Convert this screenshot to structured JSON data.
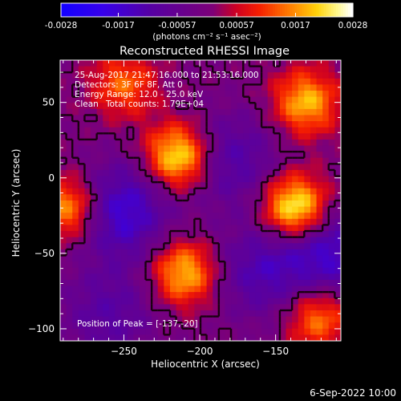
{
  "chart_data": {
    "type": "heatmap",
    "title": "Reconstructed RHESSI Image",
    "xlabel": "Heliocentric X (arcsec)",
    "ylabel": "Heliocentric Y (arcsec)",
    "xlim": [
      -292,
      -107
    ],
    "ylim": [
      -108,
      78
    ],
    "x_ticks": [
      -250,
      -200,
      -150
    ],
    "y_ticks": [
      -100,
      -50,
      0,
      50
    ],
    "colorbar": {
      "range": [
        -0.0028,
        0.0028
      ],
      "ticks": [
        "-0.0028",
        "-0.0017",
        "-0.00057",
        "0.00057",
        "0.0017",
        "0.0028"
      ],
      "units": "(photons cm⁻² s⁻¹ asec⁻²)"
    },
    "annotations": {
      "time_range": "25-Aug-2017 21:47:16.000 to 21:53:16.000",
      "detectors": "Detectors: 3F 6F 8F, Att 0",
      "energy": "Energy Range: 12.0 - 25.0 keV",
      "method": "Clean",
      "counts": "Total counts: 1.79E+04",
      "peak": "Position of Peak = [-137,-20]"
    },
    "peaks": [
      {
        "x": -214,
        "y": 14,
        "value": 0.0026
      },
      {
        "x": -137,
        "y": -20,
        "value": 0.0028
      },
      {
        "x": -130,
        "y": 50,
        "value": 0.002
      },
      {
        "x": -286,
        "y": -20,
        "value": 0.002
      },
      {
        "x": -210,
        "y": -63,
        "value": 0.0021
      },
      {
        "x": -122,
        "y": -92,
        "value": 0.0017
      },
      {
        "x": -250,
        "y": 62,
        "value": 0.0014
      }
    ],
    "troughs": [
      {
        "x": -252,
        "y": -22,
        "value": -0.0018
      },
      {
        "x": -180,
        "y": 12,
        "value": -0.0012
      },
      {
        "x": -160,
        "y": -62,
        "value": -0.0012
      },
      {
        "x": -115,
        "y": -50,
        "value": -0.0016
      },
      {
        "x": -260,
        "y": -90,
        "value": -0.001
      }
    ]
  },
  "footer": {
    "date": "6-Sep-2022 10:00"
  }
}
